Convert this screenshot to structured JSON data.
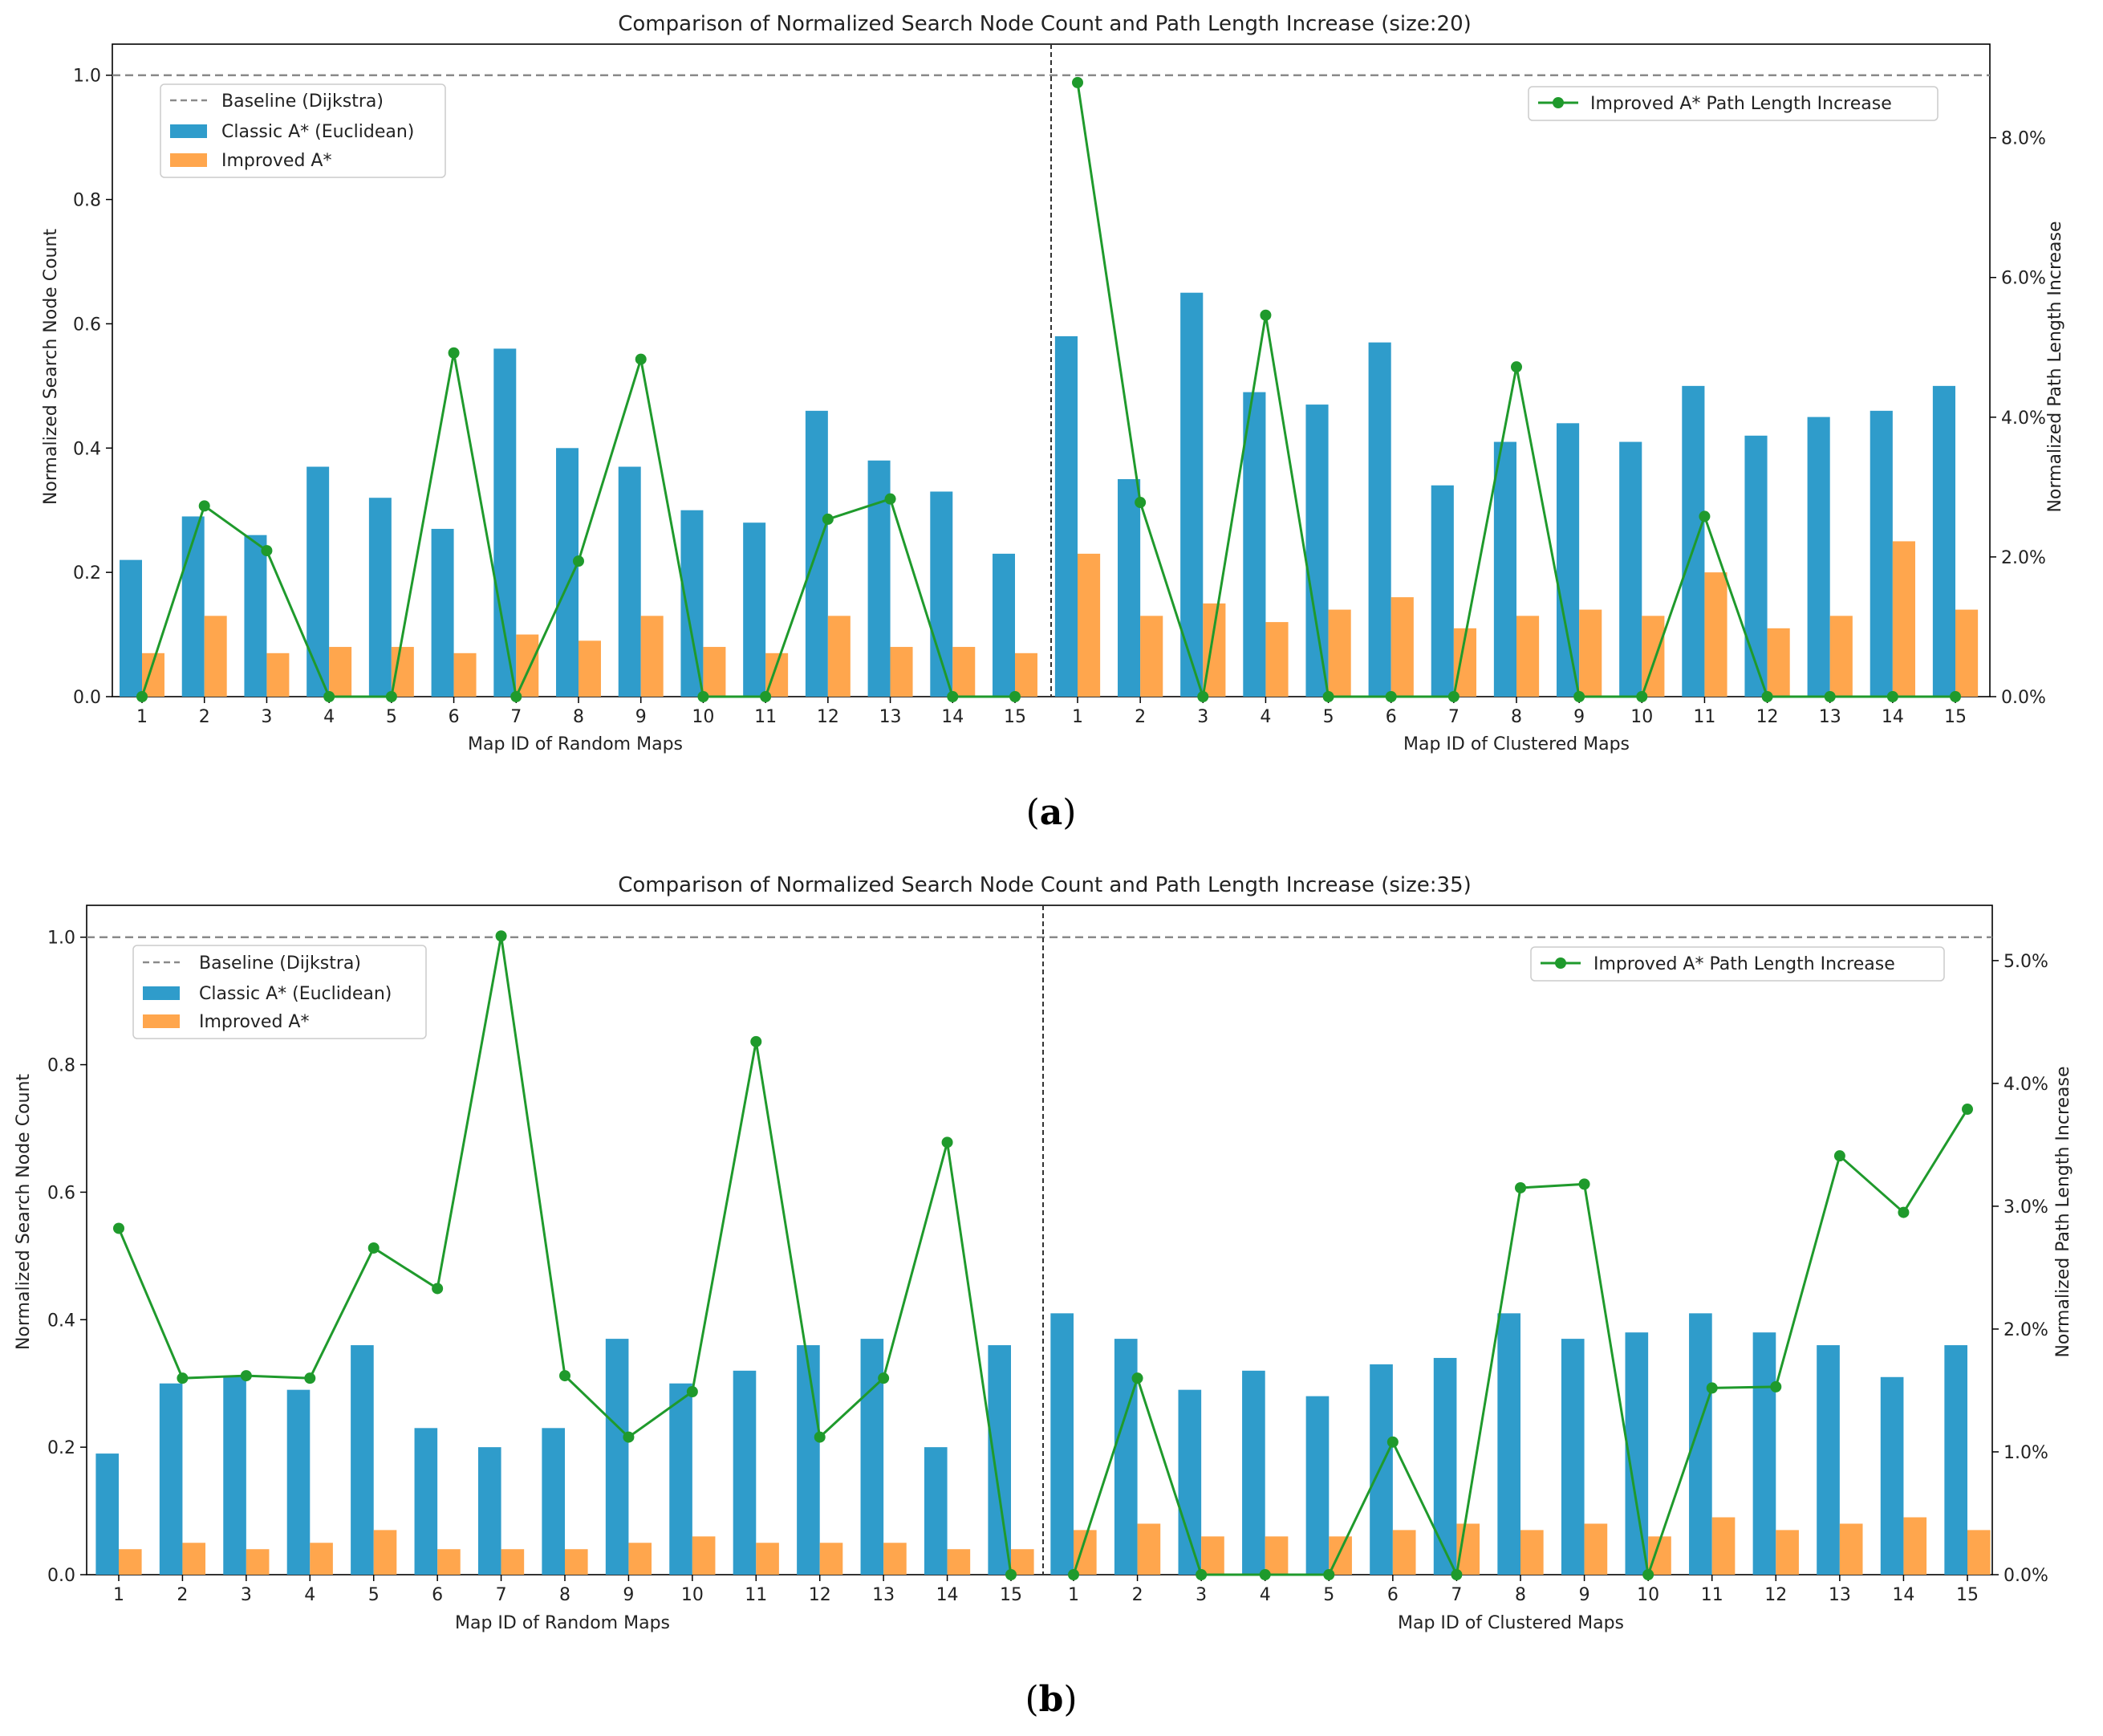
{
  "colors": {
    "classic": "#2f9ccb",
    "improved": "#ffa64d",
    "line": "#1f9a2c",
    "baseline": "#8a8a8a",
    "divider": "#333333",
    "text": "#222222"
  },
  "chart_data": [
    {
      "type": "bar",
      "caption_letter": "a",
      "title": "Comparison of Normalized Search Node Count and Path Length Increase (size:20)",
      "ylabel": "Normalized Search Node Count",
      "y2label": "Normalized Path Length Increase",
      "ylim": [
        0,
        1.05
      ],
      "y2lim": [
        0,
        0.0934
      ],
      "yticks": [
        0.0,
        0.2,
        0.4,
        0.6,
        0.8,
        1.0
      ],
      "y2ticks": [
        0.0,
        0.02,
        0.04,
        0.06,
        0.08
      ],
      "y2tick_labels": [
        "0.0%",
        "2.0%",
        "4.0%",
        "6.0%",
        "8.0%"
      ],
      "baseline": {
        "label": "Baseline (Dijkstra)",
        "value": 1.0
      },
      "legend": {
        "left": [
          "Baseline (Dijkstra)",
          "Classic A* (Euclidean)",
          "Improved A*"
        ],
        "right": [
          "Improved A* Path Length Increase"
        ],
        "placement": "top-left / top-right"
      },
      "groups": [
        {
          "xlabel": "Map ID of Random Maps",
          "categories": [
            "1",
            "2",
            "3",
            "4",
            "5",
            "6",
            "7",
            "8",
            "9",
            "10",
            "11",
            "12",
            "13",
            "14",
            "15"
          ],
          "series": [
            {
              "name": "Classic A* (Euclidean)",
              "values": [
                0.22,
                0.29,
                0.26,
                0.37,
                0.32,
                0.27,
                0.56,
                0.4,
                0.37,
                0.3,
                0.28,
                0.46,
                0.38,
                0.33,
                0.23
              ]
            },
            {
              "name": "Improved A*",
              "values": [
                0.07,
                0.13,
                0.07,
                0.08,
                0.08,
                0.07,
                0.1,
                0.09,
                0.13,
                0.08,
                0.07,
                0.13,
                0.08,
                0.08,
                0.07
              ]
            },
            {
              "name": "Improved A* Path Length Increase",
              "values": [
                0.0,
                0.0273,
                0.0209,
                0.0,
                0.0,
                0.0492,
                0.0,
                0.0194,
                0.0483,
                0.0,
                0.0,
                0.0254,
                0.0283,
                0.0,
                0.0
              ]
            }
          ]
        },
        {
          "xlabel": "Map ID of Clustered Maps",
          "categories": [
            "1",
            "2",
            "3",
            "4",
            "5",
            "6",
            "7",
            "8",
            "9",
            "10",
            "11",
            "12",
            "13",
            "14",
            "15"
          ],
          "series": [
            {
              "name": "Classic A* (Euclidean)",
              "values": [
                0.58,
                0.35,
                0.65,
                0.49,
                0.47,
                0.57,
                0.34,
                0.41,
                0.44,
                0.41,
                0.5,
                0.42,
                0.45,
                0.46,
                0.5
              ]
            },
            {
              "name": "Improved A*",
              "values": [
                0.23,
                0.13,
                0.15,
                0.12,
                0.14,
                0.16,
                0.11,
                0.13,
                0.14,
                0.13,
                0.2,
                0.11,
                0.13,
                0.25,
                0.14
              ]
            },
            {
              "name": "Improved A* Path Length Increase",
              "values": [
                0.0879,
                0.0278,
                0.0,
                0.0546,
                0.0,
                0.0,
                0.0,
                0.0472,
                0.0,
                0.0,
                0.0258,
                0.0,
                0.0,
                0.0,
                0.0
              ]
            }
          ]
        }
      ]
    },
    {
      "type": "bar",
      "caption_letter": "b",
      "title": "Comparison of Normalized Search Node Count and Path Length Increase (size:35)",
      "ylabel": "Normalized Search Node Count",
      "y2label": "Normalized Path Length Increase",
      "ylim": [
        0,
        1.05
      ],
      "y2lim": [
        0,
        0.0545
      ],
      "yticks": [
        0.0,
        0.2,
        0.4,
        0.6,
        0.8,
        1.0
      ],
      "y2ticks": [
        0.0,
        0.01,
        0.02,
        0.03,
        0.04,
        0.05
      ],
      "y2tick_labels": [
        "0.0%",
        "1.0%",
        "2.0%",
        "3.0%",
        "4.0%",
        "5.0%"
      ],
      "baseline": {
        "label": "Baseline (Dijkstra)",
        "value": 1.0
      },
      "legend": {
        "left": [
          "Baseline (Dijkstra)",
          "Classic A* (Euclidean)",
          "Improved A*"
        ],
        "right": [
          "Improved A* Path Length Increase"
        ],
        "placement": "top-left / top-right"
      },
      "groups": [
        {
          "xlabel": "Map ID of Random Maps",
          "categories": [
            "1",
            "2",
            "3",
            "4",
            "5",
            "6",
            "7",
            "8",
            "9",
            "10",
            "11",
            "12",
            "13",
            "14",
            "15"
          ],
          "series": [
            {
              "name": "Classic A* (Euclidean)",
              "values": [
                0.19,
                0.3,
                0.31,
                0.29,
                0.36,
                0.23,
                0.2,
                0.23,
                0.37,
                0.3,
                0.32,
                0.36,
                0.37,
                0.2,
                0.36
              ]
            },
            {
              "name": "Improved A*",
              "values": [
                0.04,
                0.05,
                0.04,
                0.05,
                0.07,
                0.04,
                0.04,
                0.04,
                0.05,
                0.06,
                0.05,
                0.05,
                0.05,
                0.04,
                0.04
              ]
            },
            {
              "name": "Improved A* Path Length Increase",
              "values": [
                0.0282,
                0.016,
                0.0162,
                0.016,
                0.0266,
                0.0233,
                0.052,
                0.0162,
                0.0112,
                0.0149,
                0.0434,
                0.0112,
                0.016,
                0.0352,
                0.0
              ]
            }
          ]
        },
        {
          "xlabel": "Map ID of Clustered Maps",
          "categories": [
            "1",
            "2",
            "3",
            "4",
            "5",
            "6",
            "7",
            "8",
            "9",
            "10",
            "11",
            "12",
            "13",
            "14",
            "15"
          ],
          "series": [
            {
              "name": "Classic A* (Euclidean)",
              "values": [
                0.41,
                0.37,
                0.29,
                0.32,
                0.28,
                0.33,
                0.34,
                0.41,
                0.37,
                0.38,
                0.41,
                0.38,
                0.36,
                0.31,
                0.36
              ]
            },
            {
              "name": "Improved A*",
              "values": [
                0.07,
                0.08,
                0.06,
                0.06,
                0.06,
                0.07,
                0.08,
                0.07,
                0.08,
                0.06,
                0.09,
                0.07,
                0.08,
                0.09,
                0.07
              ]
            },
            {
              "name": "Improved A* Path Length Increase",
              "values": [
                0.0,
                0.016,
                0.0,
                0.0,
                0.0,
                0.0108,
                0.0,
                0.0315,
                0.0318,
                0.0,
                0.0152,
                0.0153,
                0.0341,
                0.0295,
                0.0379
              ]
            }
          ]
        }
      ]
    }
  ]
}
